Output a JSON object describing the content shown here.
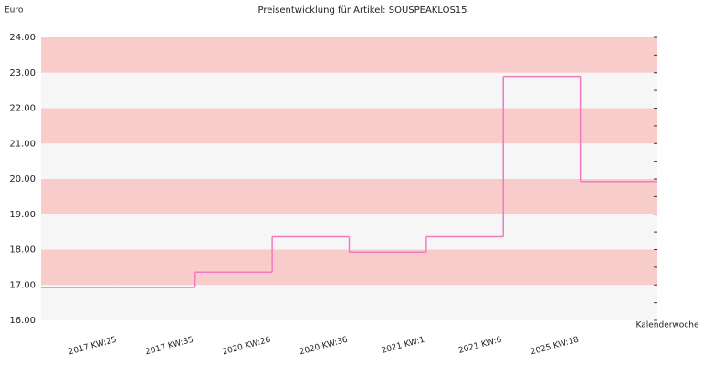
{
  "chart_data": {
    "type": "step",
    "title": "Preisentwicklung für Artikel: SOUSPEAKLOS15",
    "y_label": "Euro",
    "x_label": "Kalenderwoche",
    "categories": [
      null,
      "2017 KW:25",
      "2017 KW:35",
      "2020 KW:26",
      "2020 KW:36",
      "2021 KW:1",
      "2021 KW:6",
      "2025 KW:18"
    ],
    "values": [
      16.93,
      16.93,
      17.36,
      18.36,
      17.93,
      18.36,
      22.9,
      19.93
    ],
    "color": "#f07cc0",
    "band_colors": [
      "#f6f6f6",
      "#f9cccc"
    ],
    "ylim": [
      16,
      24
    ],
    "yticks": [
      {
        "value": 16,
        "label": "16.00"
      },
      {
        "value": 17,
        "label": "17.00"
      },
      {
        "value": 18,
        "label": "18.00"
      },
      {
        "value": 19,
        "label": "19.00"
      },
      {
        "value": 20,
        "label": "20.00"
      },
      {
        "value": 21,
        "label": "21.00"
      },
      {
        "value": 22,
        "label": "22.00"
      },
      {
        "value": 23,
        "label": "23.00"
      },
      {
        "value": 24,
        "label": "24.00"
      }
    ]
  }
}
